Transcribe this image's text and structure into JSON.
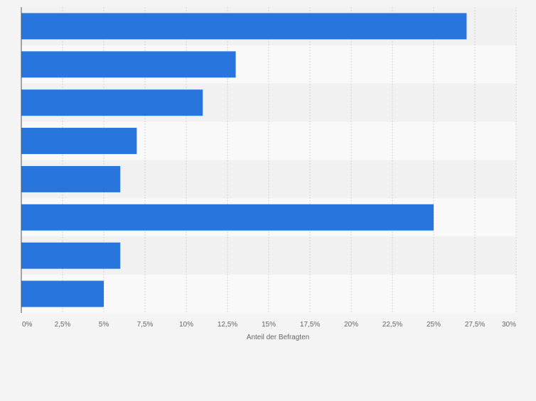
{
  "chart_data": {
    "type": "bar",
    "orientation": "horizontal",
    "categories": [
      "",
      "",
      "",
      "",
      "",
      "",
      "",
      ""
    ],
    "values": [
      27,
      13,
      11,
      7,
      6,
      25,
      6,
      5
    ],
    "xlabel": "Anteil der Befragten",
    "ylabel": "",
    "xlim": [
      0,
      30
    ],
    "ticks": [
      0,
      2.5,
      5,
      7.5,
      10,
      12.5,
      15,
      17.5,
      20,
      22.5,
      25,
      27.5,
      30
    ],
    "tick_labels": [
      "0%",
      "2,5%",
      "5%",
      "7,5%",
      "10%",
      "12,5%",
      "15%",
      "17,5%",
      "20%",
      "22,5%",
      "25%",
      "27,5%",
      "30%"
    ],
    "grid": true,
    "legend": "none"
  },
  "colors": {
    "bar": "#2876dd",
    "background": "#f4f4f4",
    "band_light": "#f9f9f9",
    "band_dark": "#f1f1f1",
    "grid": "#d4d4d4",
    "axis": "#555555",
    "text": "#666666"
  }
}
